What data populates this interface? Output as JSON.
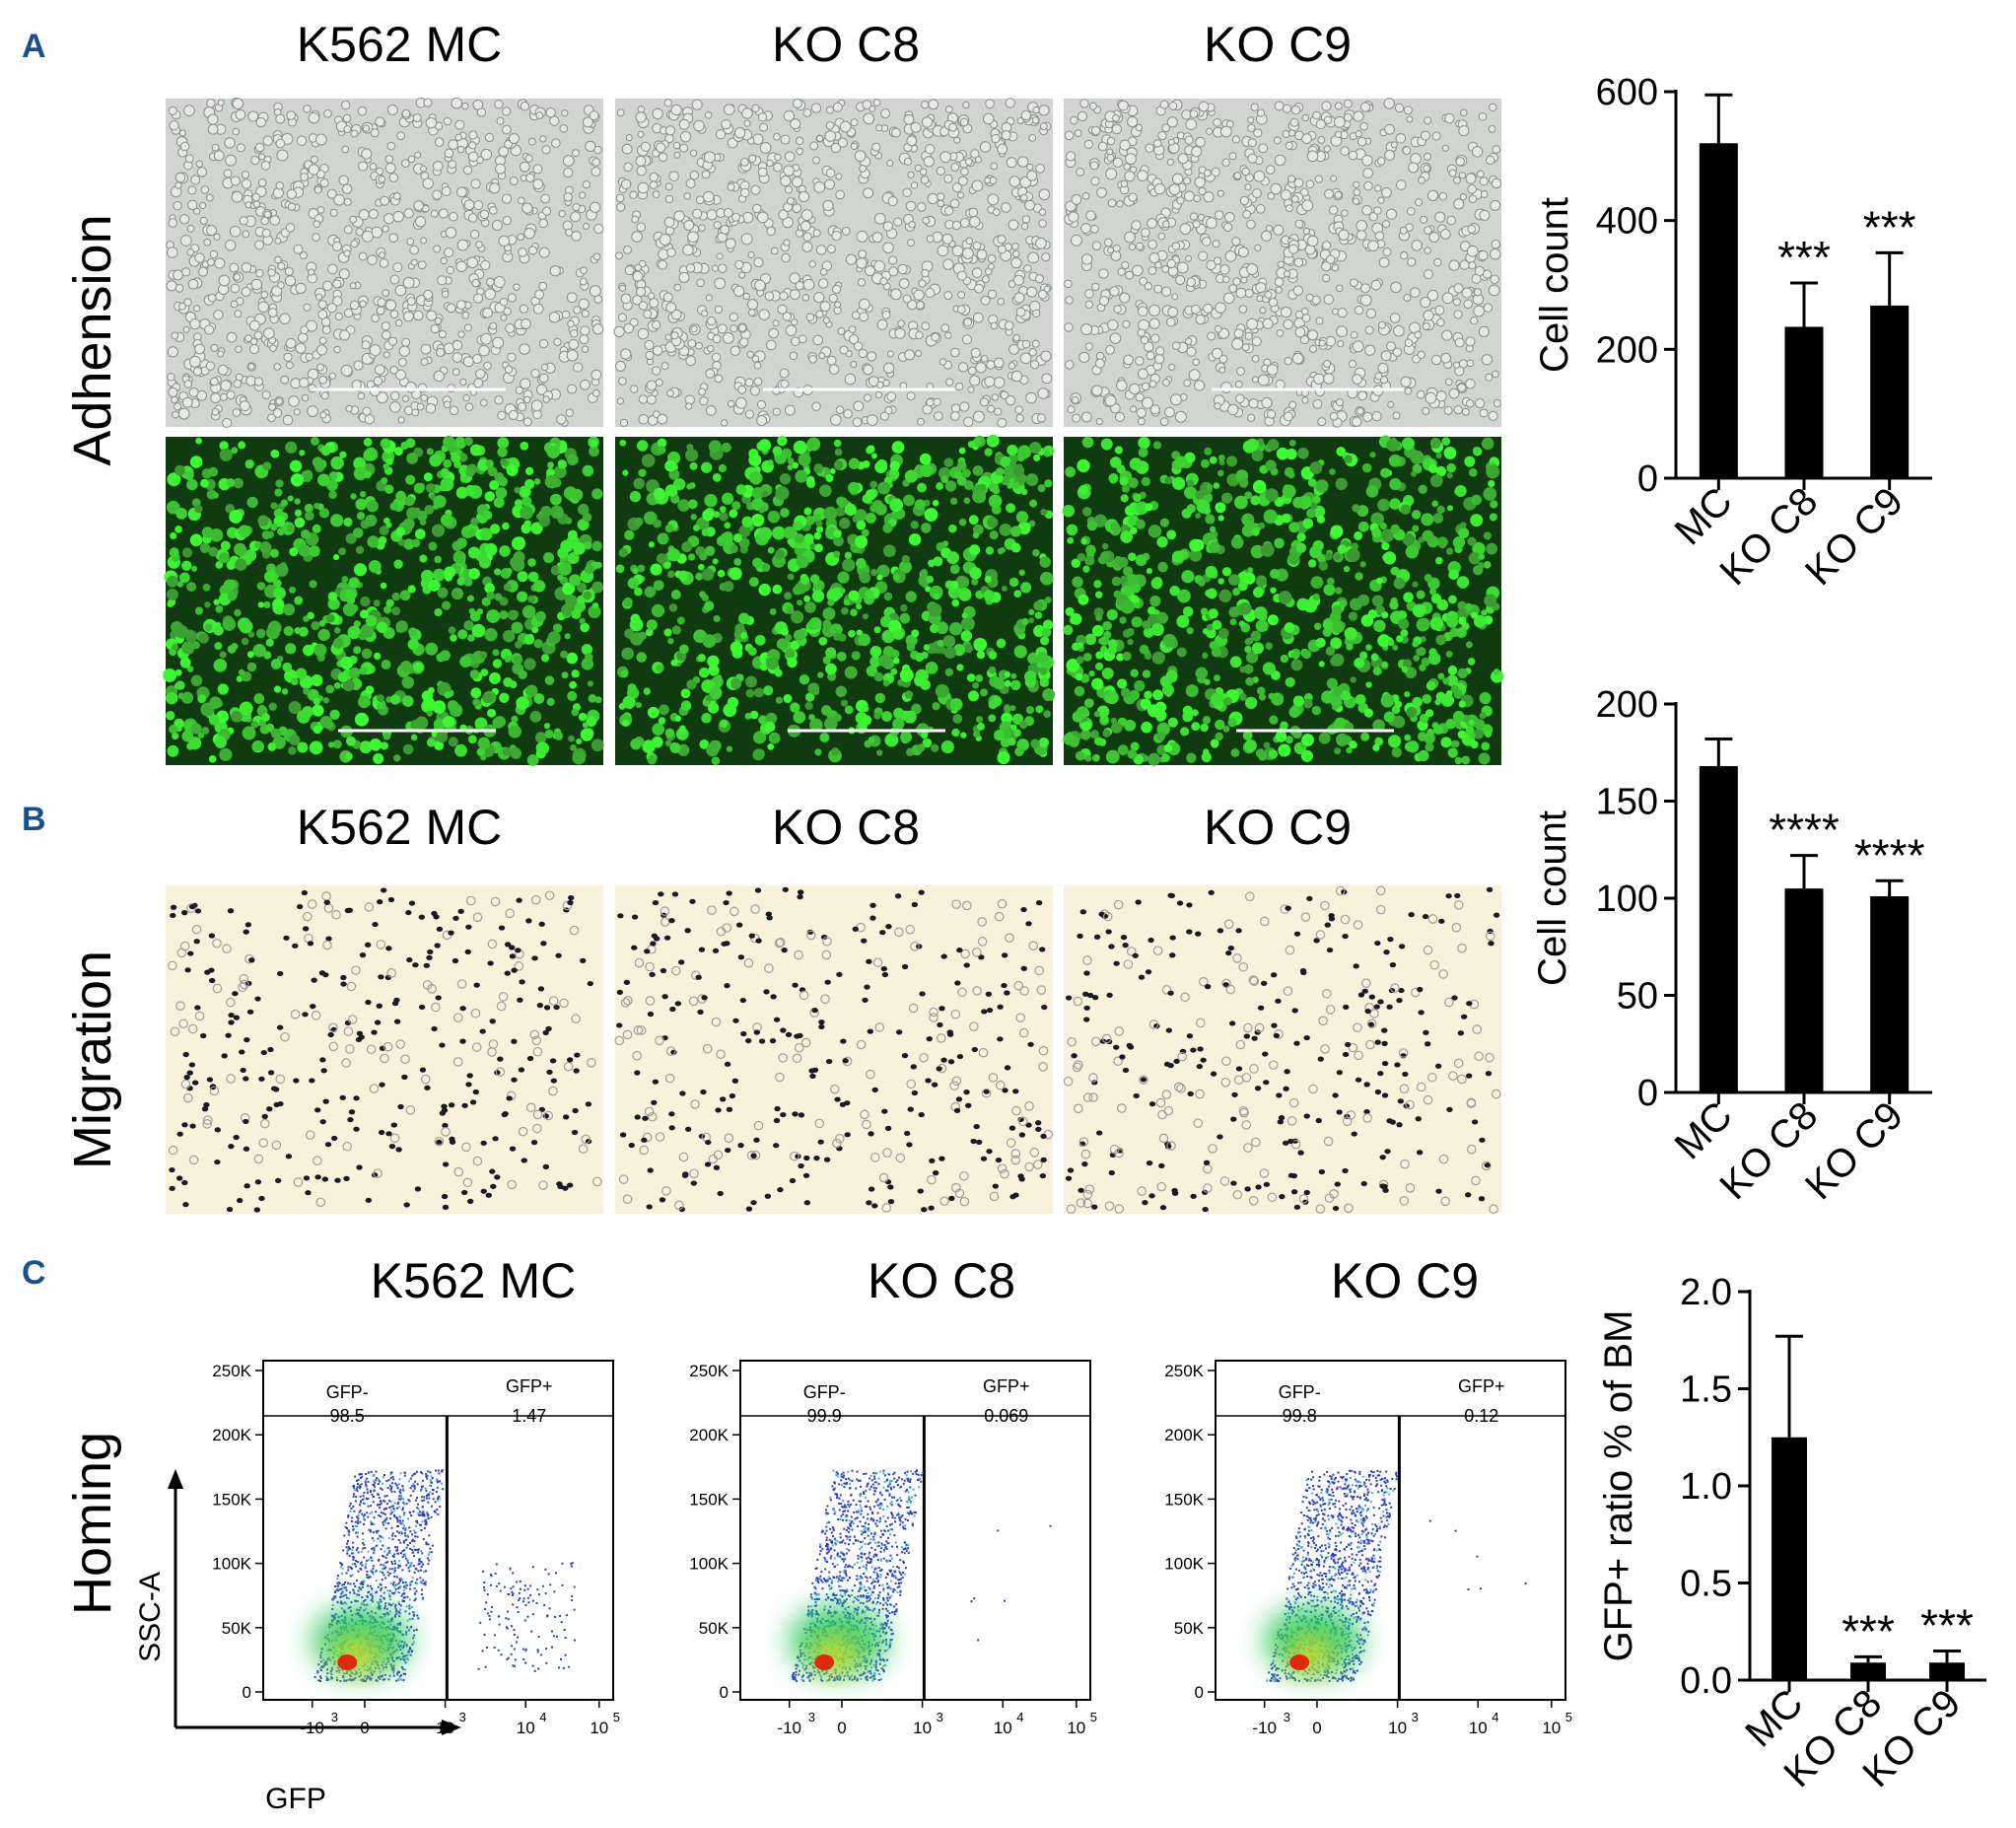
{
  "panels": {
    "A": {
      "letter": "A",
      "row_label": "Adhension",
      "columns": [
        "K562 MC",
        "KO C8",
        "KO C9"
      ],
      "chart_data": {
        "type": "bar",
        "categories": [
          "MC",
          "KO C8",
          "KO C9"
        ],
        "values": [
          520,
          235,
          268
        ],
        "errors": [
          75,
          68,
          82
        ],
        "significance": [
          "",
          "***",
          "***"
        ],
        "ylabel": "Cell count",
        "ylim": [
          0,
          600
        ],
        "yticks": [
          0,
          200,
          400,
          600
        ]
      }
    },
    "B": {
      "letter": "B",
      "row_label": "Migration",
      "columns": [
        "K562 MC",
        "KO C8",
        "KO C9"
      ],
      "chart_data": {
        "type": "bar",
        "categories": [
          "MC",
          "KO C8",
          "KO C9"
        ],
        "values": [
          168,
          105,
          101
        ],
        "errors": [
          14,
          17,
          8
        ],
        "significance": [
          "",
          "****",
          "****"
        ],
        "ylabel": "Cell count",
        "ylim": [
          0,
          200
        ],
        "yticks": [
          0,
          50,
          100,
          150,
          200
        ]
      }
    },
    "C": {
      "letter": "C",
      "row_label": "Homing",
      "columns": [
        "K562 MC",
        "KO C8",
        "KO C9"
      ],
      "facs": {
        "y_axis_label": "SSC-A",
        "x_axis_label": "GFP",
        "y_ticks": [
          "250K",
          "200K",
          "150K",
          "100K",
          "50K",
          "0"
        ],
        "x_ticks": [
          "-10",
          "0",
          "10",
          "10",
          "10"
        ],
        "x_tick_exp": [
          "3",
          "",
          "3",
          "4",
          "5"
        ],
        "gate_neg": "GFP-",
        "gate_pos": "GFP+",
        "plots": [
          {
            "neg_pct": "98.5",
            "pos_pct": "1.47"
          },
          {
            "neg_pct": "99.9",
            "pos_pct": "0.069"
          },
          {
            "neg_pct": "99.8",
            "pos_pct": "0.12"
          }
        ]
      },
      "chart_data": {
        "type": "bar",
        "categories": [
          "MC",
          "KO C8",
          "KO C9"
        ],
        "values": [
          1.25,
          0.09,
          0.09
        ],
        "errors": [
          0.52,
          0.03,
          0.06
        ],
        "significance": [
          "",
          "***",
          "***"
        ],
        "ylabel": "GFP+ ratio % of BM",
        "ylim": [
          0,
          2.0
        ],
        "yticks": [
          "0.0",
          "0.5",
          "1.0",
          "1.5",
          "2.0"
        ]
      }
    }
  },
  "colors": {
    "panel_letter": "#1a4f8f",
    "brightfield_bg": "#d2d4d2",
    "fluorescence_bg": "#103a10",
    "fluorescence_cell": "#4ee84e",
    "migration_bg": "#f8f2dc",
    "migration_cell": "#1a1a24",
    "bar": "#000000"
  }
}
